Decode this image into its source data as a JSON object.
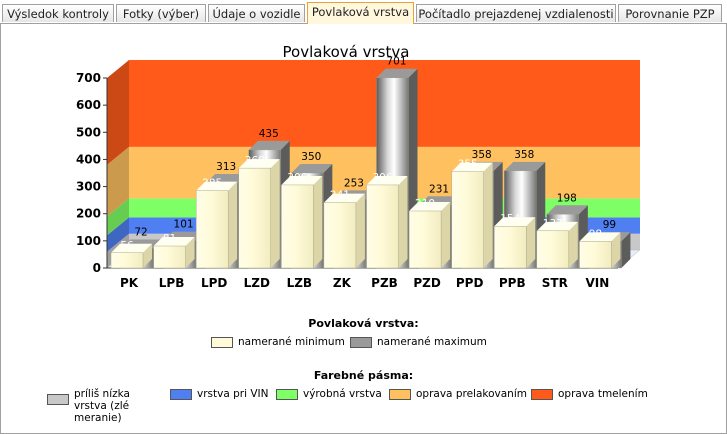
{
  "tabs": [
    {
      "label": "Výsledok kontroly",
      "active": false
    },
    {
      "label": "Fotky (výber)",
      "active": false
    },
    {
      "label": "Údaje o vozidle",
      "active": false
    },
    {
      "label": "Povlaková vrstva",
      "active": true
    },
    {
      "label": "Počítadlo prejazdenej vzdialenosti",
      "active": false
    },
    {
      "label": "Porovnanie PZP",
      "active": false
    }
  ],
  "chart_data": {
    "type": "bar",
    "title": "Povlaková vrstva",
    "categories": [
      "PK",
      "LPB",
      "LPD",
      "LZD",
      "LZB",
      "ZK",
      "PZB",
      "PZD",
      "PPD",
      "PPB",
      "STR",
      "VIN"
    ],
    "series": [
      {
        "name": "namerané minimum",
        "values": [
          56,
          81,
          285,
          368,
          306,
          241,
          306,
          210,
          355,
          154,
          137,
          98
        ],
        "color": "#fffbd9"
      },
      {
        "name": "namerané maximum",
        "values": [
          72,
          101,
          313,
          435,
          350,
          253,
          701,
          231,
          358,
          358,
          198,
          99
        ],
        "color": "#8c8c8c"
      }
    ],
    "yticks": [
      0,
      100,
      200,
      300,
      400,
      500,
      600,
      700
    ],
    "ylim": [
      0,
      700
    ],
    "bands": [
      {
        "name": "príliš nízka vrstva (zlé meranie)",
        "from": 0,
        "to": 60,
        "color": "#c8c8c8"
      },
      {
        "name": "vrstva pri VIN",
        "from": 60,
        "to": 120,
        "color": "#4f7ff0"
      },
      {
        "name": "výrobná vrstva",
        "from": 120,
        "to": 190,
        "color": "#7fff66"
      },
      {
        "name": "oprava prelakovaním",
        "from": 190,
        "to": 380,
        "color": "#ffc060"
      },
      {
        "name": "oprava tmelením",
        "from": 380,
        "to": 700,
        "color": "#ff5a1a"
      }
    ],
    "legend_title": "Povlaková vrstva:",
    "bands_title": "Farebné pásma:"
  }
}
